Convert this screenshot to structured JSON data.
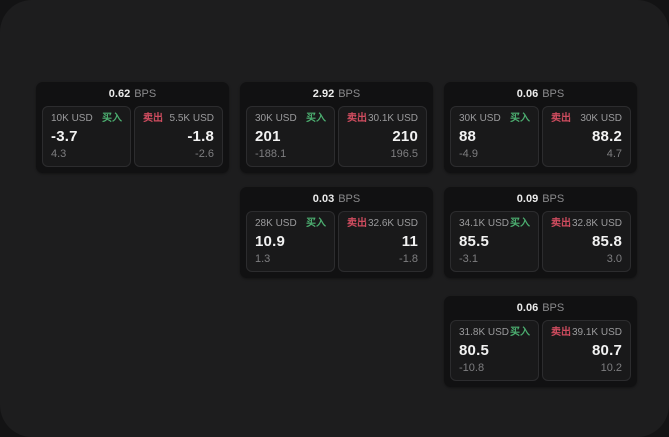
{
  "colors": {
    "backdrop": "#131314",
    "panel": "#1d1d1e",
    "card": "#111112",
    "subcard": "#19191a",
    "subcard_border": "#2c2c2e",
    "text_primary": "#f2f2f2",
    "text_secondary": "#9b9b9d",
    "text_muted": "#7e7e80",
    "buy_green": "#4cae70",
    "sell_red": "#cf4c5f"
  },
  "labels": {
    "bps_unit": "BPS",
    "buy": "买入",
    "sell": "卖出"
  },
  "cards": [
    {
      "bps": "0.62",
      "buy": {
        "notional": "10K USD",
        "price": "-3.7",
        "delta": "4.3"
      },
      "sell": {
        "notional": "5.5K USD",
        "price": "-1.8",
        "delta": "-2.6"
      }
    },
    {
      "bps": "2.92",
      "buy": {
        "notional": "30K USD",
        "price": "201",
        "delta": "-188.1"
      },
      "sell": {
        "notional": "30.1K USD",
        "price": "210",
        "delta": "196.5"
      }
    },
    {
      "bps": "0.06",
      "buy": {
        "notional": "30K USD",
        "price": "88",
        "delta": "-4.9"
      },
      "sell": {
        "notional": "30K USD",
        "price": "88.2",
        "delta": "4.7"
      }
    },
    {
      "bps": "0.03",
      "buy": {
        "notional": "28K USD",
        "price": "10.9",
        "delta": "1.3"
      },
      "sell": {
        "notional": "32.6K USD",
        "price": "11",
        "delta": "-1.8"
      }
    },
    {
      "bps": "0.09",
      "buy": {
        "notional": "34.1K USD",
        "price": "85.5",
        "delta": "-3.1"
      },
      "sell": {
        "notional": "32.8K USD",
        "price": "85.8",
        "delta": "3.0"
      }
    },
    {
      "bps": "0.06",
      "buy": {
        "notional": "31.8K USD",
        "price": "80.5",
        "delta": "-10.8"
      },
      "sell": {
        "notional": "39.1K USD",
        "price": "80.7",
        "delta": "10.2"
      }
    }
  ]
}
